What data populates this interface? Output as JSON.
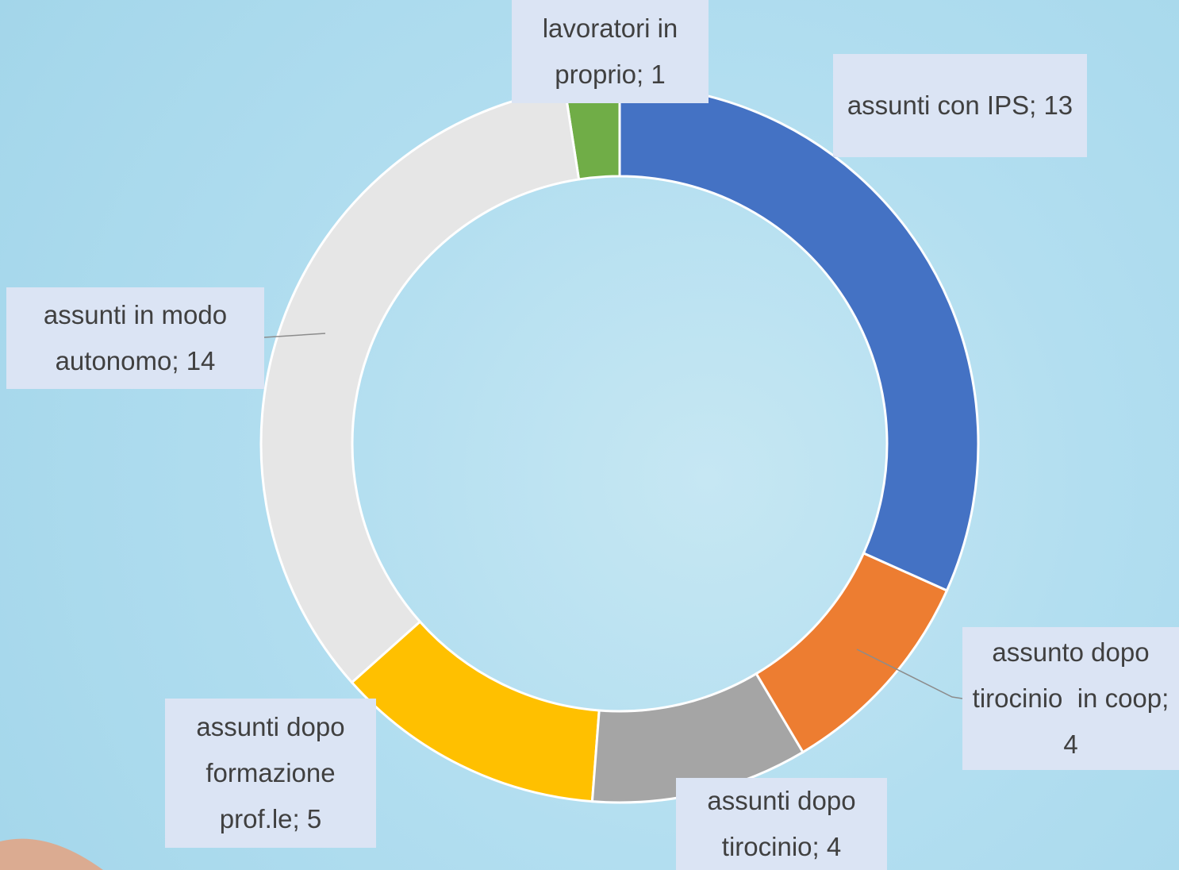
{
  "chart_data": {
    "type": "donut",
    "categories": [
      "assunti con IPS",
      "assunto dopo tirocinio  in coop",
      "assunti dopo tirocinio",
      "assunti dopo formazione prof.le",
      "assunti in modo autonomo",
      "lavoratori in proprio"
    ],
    "values": [
      13,
      4,
      4,
      5,
      14,
      1
    ],
    "value_labels": [
      "assunti con IPS; 13",
      "assunto dopo tirocinio  in coop; 4",
      "assunti dopo tirocinio; 4",
      "assunti dopo formazione prof.le; 5",
      "assunti in modo autonomo; 14",
      "lavoratori in proprio; 1"
    ],
    "colors": [
      "#4472c4",
      "#ed7d31",
      "#a5a5a5",
      "#ffc000",
      "#e6e6e6",
      "#70ad47"
    ]
  }
}
